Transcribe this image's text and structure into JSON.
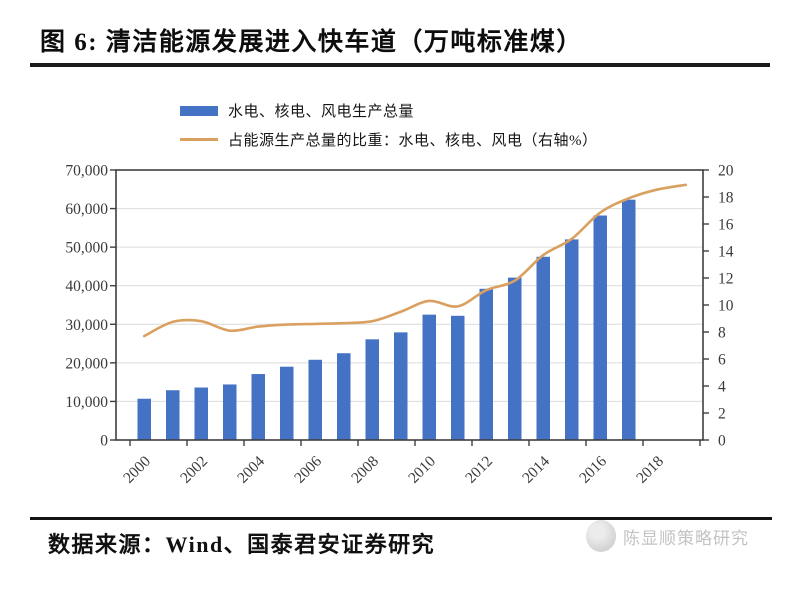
{
  "figure": {
    "title": "图 6:  清洁能源发展进入快车道（万吨标准煤）",
    "source_label": "数据来源：Wind、国泰君安证券研究",
    "watermark": "陈显顺策略研究"
  },
  "legend": [
    {
      "type": "bar",
      "label": "水电、核电、风电生产总量",
      "color": "#4472C4"
    },
    {
      "type": "line",
      "label": "占能源生产总量的比重：水电、核电、风电（右轴%）",
      "color": "#D9A05F"
    }
  ],
  "theme": {
    "background": "#FFFFFF",
    "bar_color": "#4472C4",
    "line_color": "#D9A05F",
    "grid_color": "#DCDCDC",
    "axis_color": "#3F3F3F",
    "tick_label_color": "#3A3A3A"
  },
  "chart_data": {
    "type": "bar",
    "combo": "bar+line",
    "categories": [
      2000,
      2001,
      2002,
      2003,
      2004,
      2005,
      2006,
      2007,
      2008,
      2009,
      2010,
      2011,
      2012,
      2013,
      2014,
      2015,
      2016,
      2017,
      2018,
      2019
    ],
    "series": [
      {
        "name": "水电、核电、风电生产总量",
        "type": "bar",
        "axis": "left",
        "color": "#4472C4",
        "values": [
          10700,
          12900,
          13600,
          14400,
          17100,
          19000,
          20800,
          22500,
          26100,
          27900,
          32500,
          32200,
          39200,
          42100,
          47500,
          52000,
          58200,
          62300,
          null,
          null
        ]
      },
      {
        "name": "占能源生产总量的比重：水电、核电、风电（右轴%）",
        "type": "line",
        "axis": "right",
        "color": "#D9A05F",
        "values": [
          7.7,
          8.75,
          8.8,
          8.1,
          8.4,
          8.55,
          8.6,
          8.65,
          8.8,
          9.5,
          10.3,
          9.9,
          11.1,
          11.8,
          13.7,
          14.9,
          16.85,
          17.9,
          18.55,
          18.9
        ]
      }
    ],
    "left_axis": {
      "min": 0,
      "max": 70000,
      "step": 10000,
      "tick_labels": [
        "0",
        "10,000",
        "20,000",
        "30,000",
        "40,000",
        "50,000",
        "60,000",
        "70,000"
      ]
    },
    "right_axis": {
      "min": 0,
      "max": 20,
      "step": 2,
      "tick_labels": [
        "0",
        "2",
        "4",
        "6",
        "8",
        "10",
        "12",
        "14",
        "16",
        "18",
        "20"
      ]
    },
    "x_tick_labels": [
      "2000",
      "2002",
      "2004",
      "2006",
      "2008",
      "2010",
      "2012",
      "2014",
      "2016",
      "2018"
    ],
    "grid": true,
    "legend_position": "top"
  }
}
